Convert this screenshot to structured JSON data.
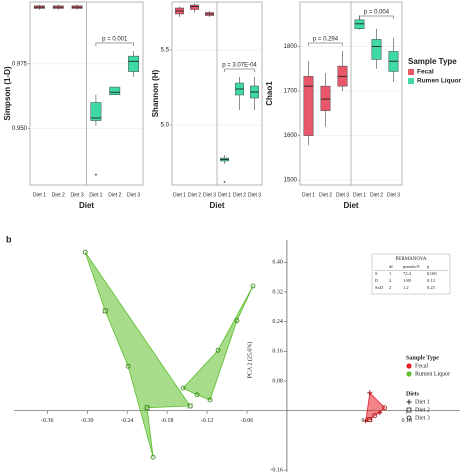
{
  "chart_data": [
    {
      "type": "box",
      "y_label": "Simpson (1-D)",
      "x_label": "Diet",
      "categories": [
        "Diet 1",
        "Diet 2",
        "Diet 3"
      ],
      "ylim": [
        0.928,
        0.999
      ],
      "yticks": [
        {
          "value": 0.95,
          "label": "0.950"
        },
        {
          "value": 0.975,
          "label": "0.975"
        }
      ],
      "grid": true,
      "series": [
        {
          "name": "Fecal",
          "color": "#e8576a",
          "boxes": [
            [
              0.996,
              0.9965,
              0.997,
              0.9975,
              0.998
            ],
            [
              0.996,
              0.9965,
              0.997,
              0.9975,
              0.998
            ],
            [
              0.996,
              0.9965,
              0.997,
              0.9975,
              0.998
            ]
          ],
          "outliers": [
            [],
            [],
            []
          ]
        },
        {
          "name": "Rumen Liquor",
          "color": "#3fd9a5",
          "boxes": [
            [
              0.951,
              0.953,
              0.954,
              0.96,
              0.963
            ],
            [
              0.963,
              0.963,
              0.964,
              0.966,
              0.966
            ],
            [
              0.97,
              0.972,
              0.976,
              0.978,
              0.98
            ]
          ],
          "outliers": [
            [
              0.932
            ],
            [],
            []
          ],
          "p_label": "p = 0.001"
        }
      ]
    },
    {
      "type": "box",
      "y_label": "Shannon (H)",
      "x_label": "Diet",
      "categories": [
        "Diet 1",
        "Diet 2",
        "Diet 3"
      ],
      "ylim": [
        4.6,
        5.82
      ],
      "yticks": [
        {
          "value": 5,
          "label": "5.0"
        },
        {
          "value": 5.5,
          "label": "5.5"
        }
      ],
      "grid": true,
      "series": [
        {
          "name": "Fecal",
          "color": "#e8576a",
          "boxes": [
            [
              5.72,
              5.74,
              5.76,
              5.78,
              5.79
            ],
            [
              5.75,
              5.77,
              5.79,
              5.8,
              5.81
            ],
            [
              5.72,
              5.73,
              5.74,
              5.75,
              5.76
            ]
          ],
          "outliers": [
            [],
            [],
            []
          ]
        },
        {
          "name": "Rumen Liquor",
          "color": "#3fd9a5",
          "boxes": [
            [
              4.74,
              4.76,
              4.77,
              4.78,
              4.8
            ],
            [
              5.1,
              5.2,
              5.24,
              5.28,
              5.32
            ],
            [
              5.1,
              5.18,
              5.22,
              5.26,
              5.32
            ]
          ],
          "outliers": [
            [
              4.62
            ],
            [],
            []
          ],
          "p_label": "p = 3.07E-04"
        }
      ]
    },
    {
      "type": "box",
      "y_label": "Chao1",
      "x_label": "Diet",
      "categories": [
        "Diet 1",
        "Diet 2",
        "Diet 3"
      ],
      "ylim": [
        1489,
        1900
      ],
      "yticks": [
        1500,
        1600,
        1700,
        1800
      ],
      "grid": true,
      "legend": "right",
      "legend_title": "Sample Type",
      "series": [
        {
          "name": "Fecal",
          "color": "#e8576a",
          "boxes": [
            [
              1578,
              1600,
              1711,
              1733,
              1767
            ],
            [
              1620,
              1656,
              1682,
              1711,
              1740
            ],
            [
              1700,
              1711,
              1733,
              1756,
              1790
            ]
          ],
          "outliers": [
            [],
            [],
            []
          ],
          "p_label": "p = 0.294"
        },
        {
          "name": "Rumen Liquor",
          "color": "#3fd9a5",
          "boxes": [
            [
              1838,
              1840,
              1851,
              1860,
              1870
            ],
            [
              1750,
              1771,
              1800,
              1816,
              1840
            ],
            [
              1720,
              1744,
              1767,
              1789,
              1820
            ]
          ],
          "outliers": [
            [],
            [],
            []
          ],
          "p_label": "p = 0.004"
        }
      ]
    },
    {
      "type": "pca",
      "panel_label": "b",
      "y_label": "PCA 2 (25.6%)",
      "xlim": [
        -0.41,
        0.26
      ],
      "ylim": [
        -0.165,
        0.46
      ],
      "xticks": [
        -0.36,
        {
          "value": -0.3,
          "label": "-0.30"
        },
        -0.24,
        -0.18,
        -0.12,
        -0.06,
        0.12,
        0.18
      ],
      "yticks": [
        {
          "value": 0.4,
          "label": "0.40"
        },
        0.32,
        0.24,
        0.16,
        0.08,
        -0.16
      ],
      "legend_title": "Sample Type",
      "series": [
        {
          "name": "Fecal",
          "color": "#e8202a",
          "clusters": [
            {
              "x": [
                0.1245,
                0.147,
                0.1395,
                0.132,
                0.1245,
                0.1185
              ],
              "y": [
                0.048,
                0.008,
                -0.005,
                -0.013,
                -0.024,
                -0.027
              ],
              "shape": [
                "plus",
                "circle",
                "plus",
                "circle",
                "square",
                "plus"
              ]
            }
          ]
        },
        {
          "name": "Rumen Liquor",
          "color": "#5cbf2a",
          "clusters": [
            {
              "x": [
                -0.303,
                -0.273,
                -0.2385,
                -0.21,
                -0.201,
                -0.1455
              ],
              "y": [
                0.427,
                0.269,
                0.12,
                0.008,
                -0.125,
                0.013
              ],
              "shape": [
                "circle",
                "square",
                "circle",
                "square",
                "circle",
                "square"
              ]
            },
            {
              "x": [
                -0.051,
                -0.075,
                -0.1035,
                -0.135,
                -0.156,
                -0.1155
              ],
              "y": [
                0.336,
                0.243,
                0.163,
                0.043,
                0.061,
                0.029
              ],
              "shape": [
                "circle",
                "circle",
                "circle",
                "circle",
                "circle",
                "circle"
              ]
            }
          ]
        }
      ],
      "diets": {
        "title": "Diets",
        "items": [
          {
            "label": "Diet 1",
            "marker": "plus"
          },
          {
            "label": "Diet 2",
            "marker": "square"
          },
          {
            "label": "Diet 3",
            "marker": "circle"
          }
        ]
      },
      "table": {
        "title": "PERMANOVA",
        "header": [
          "",
          "df",
          "pseudo-F",
          "p"
        ],
        "rows": [
          [
            "S",
            "1",
            "72.4",
            "0.001"
          ],
          [
            "D",
            "2",
            "1.89",
            "0.13"
          ],
          [
            "SxD",
            "2",
            "1.2",
            "0.25"
          ]
        ]
      }
    }
  ]
}
